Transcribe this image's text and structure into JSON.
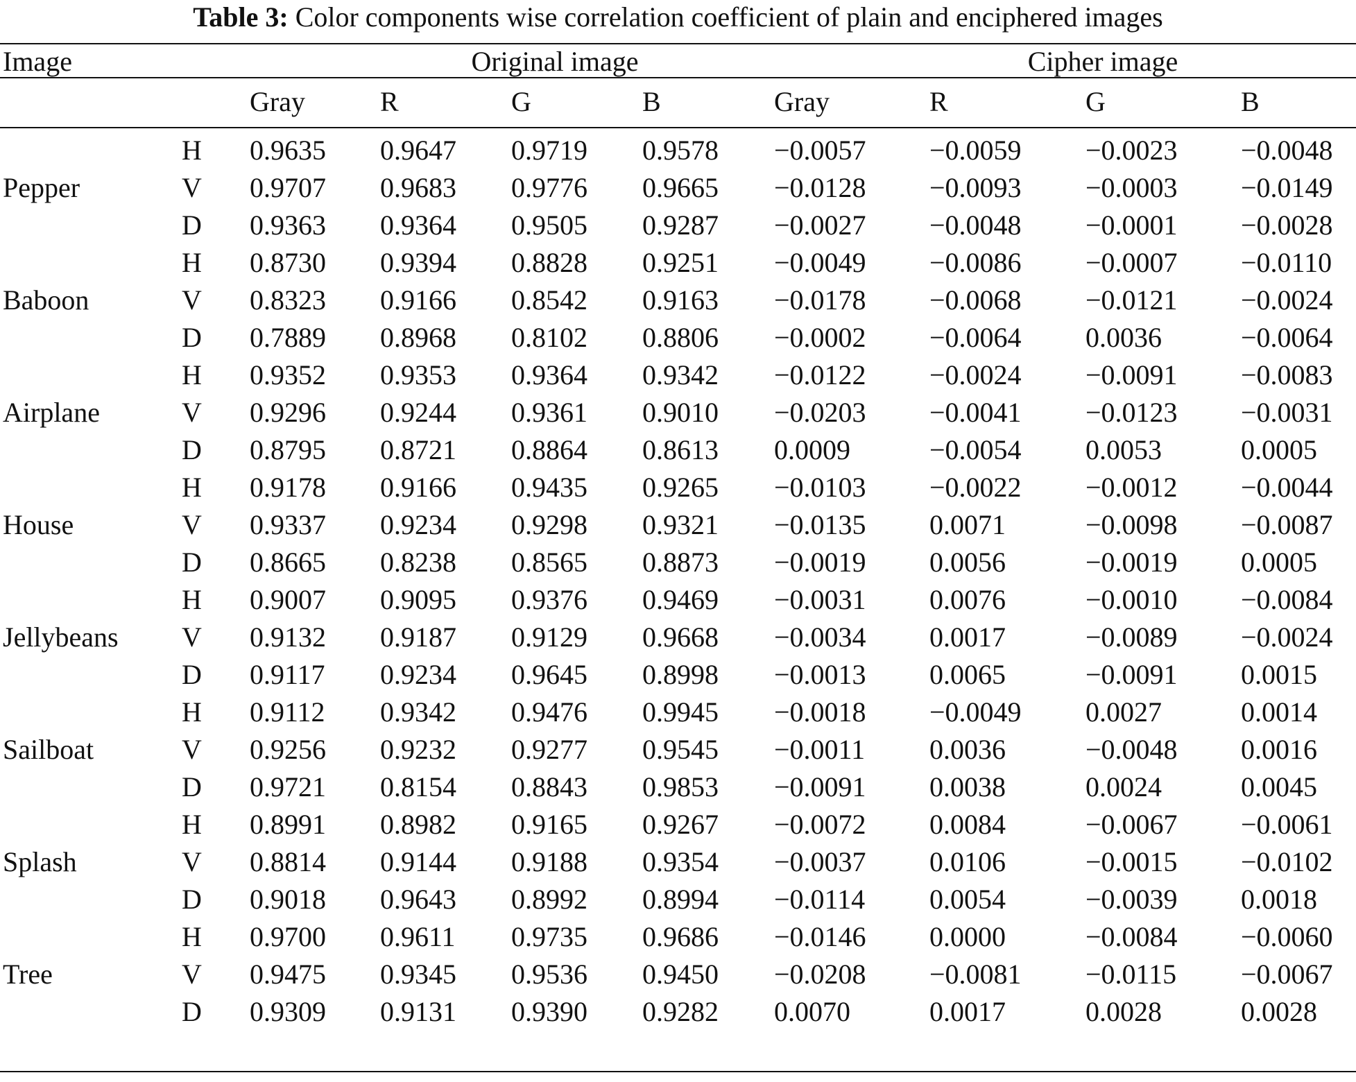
{
  "caption": {
    "label": "Table 3:",
    "text": "Color components wise correlation coefficient of plain and enciphered images"
  },
  "header": {
    "image": "Image",
    "original": "Original image",
    "cipher": "Cipher image",
    "subcols": [
      "Gray",
      "R",
      "G",
      "B",
      "Gray",
      "R",
      "G",
      "B"
    ]
  },
  "groups": [
    {
      "name": "Pepper",
      "rows": [
        {
          "dir": "H",
          "values": [
            "0.9635",
            "0.9647",
            "0.9719",
            "0.9578",
            "−0.0057",
            "−0.0059",
            "−0.0023",
            "−0.0048"
          ]
        },
        {
          "dir": "V",
          "values": [
            "0.9707",
            "0.9683",
            "0.9776",
            "0.9665",
            "−0.0128",
            "−0.0093",
            "−0.0003",
            "−0.0149"
          ]
        },
        {
          "dir": "D",
          "values": [
            "0.9363",
            "0.9364",
            "0.9505",
            "0.9287",
            "−0.0027",
            "−0.0048",
            "−0.0001",
            "−0.0028"
          ]
        }
      ]
    },
    {
      "name": "Baboon",
      "rows": [
        {
          "dir": "H",
          "values": [
            "0.8730",
            "0.9394",
            "0.8828",
            "0.9251",
            "−0.0049",
            "−0.0086",
            "−0.0007",
            "−0.0110"
          ]
        },
        {
          "dir": "V",
          "values": [
            "0.8323",
            "0.9166",
            "0.8542",
            "0.9163",
            "−0.0178",
            "−0.0068",
            "−0.0121",
            "−0.0024"
          ]
        },
        {
          "dir": "D",
          "values": [
            "0.7889",
            "0.8968",
            "0.8102",
            "0.8806",
            "−0.0002",
            "−0.0064",
            "0.0036",
            "−0.0064"
          ]
        }
      ]
    },
    {
      "name": "Airplane",
      "rows": [
        {
          "dir": "H",
          "values": [
            "0.9352",
            "0.9353",
            "0.9364",
            "0.9342",
            "−0.0122",
            "−0.0024",
            "−0.0091",
            "−0.0083"
          ]
        },
        {
          "dir": "V",
          "values": [
            "0.9296",
            "0.9244",
            "0.9361",
            "0.9010",
            "−0.0203",
            "−0.0041",
            "−0.0123",
            "−0.0031"
          ]
        },
        {
          "dir": "D",
          "values": [
            "0.8795",
            "0.8721",
            "0.8864",
            "0.8613",
            "0.0009",
            "−0.0054",
            "0.0053",
            "0.0005"
          ]
        }
      ]
    },
    {
      "name": "House",
      "rows": [
        {
          "dir": "H",
          "values": [
            "0.9178",
            "0.9166",
            "0.9435",
            "0.9265",
            "−0.0103",
            "−0.0022",
            "−0.0012",
            "−0.0044"
          ]
        },
        {
          "dir": "V",
          "values": [
            "0.9337",
            "0.9234",
            "0.9298",
            "0.9321",
            "−0.0135",
            "0.0071",
            "−0.0098",
            "−0.0087"
          ]
        },
        {
          "dir": "D",
          "values": [
            "0.8665",
            "0.8238",
            "0.8565",
            "0.8873",
            "−0.0019",
            "0.0056",
            "−0.0019",
            "0.0005"
          ]
        }
      ]
    },
    {
      "name": "Jellybeans",
      "rows": [
        {
          "dir": "H",
          "values": [
            "0.9007",
            "0.9095",
            "0.9376",
            "0.9469",
            "−0.0031",
            "0.0076",
            "−0.0010",
            "−0.0084"
          ]
        },
        {
          "dir": "V",
          "values": [
            "0.9132",
            "0.9187",
            "0.9129",
            "0.9668",
            "−0.0034",
            "0.0017",
            "−0.0089",
            "−0.0024"
          ]
        },
        {
          "dir": "D",
          "values": [
            "0.9117",
            "0.9234",
            "0.9645",
            "0.8998",
            "−0.0013",
            "0.0065",
            "−0.0091",
            "0.0015"
          ]
        }
      ]
    },
    {
      "name": "Sailboat",
      "rows": [
        {
          "dir": "H",
          "values": [
            "0.9112",
            "0.9342",
            "0.9476",
            "0.9945",
            "−0.0018",
            "−0.0049",
            "0.0027",
            "0.0014"
          ]
        },
        {
          "dir": "V",
          "values": [
            "0.9256",
            "0.9232",
            "0.9277",
            "0.9545",
            "−0.0011",
            "0.0036",
            "−0.0048",
            "0.0016"
          ]
        },
        {
          "dir": "D",
          "values": [
            "0.9721",
            "0.8154",
            "0.8843",
            "0.9853",
            "−0.0091",
            "0.0038",
            "0.0024",
            "0.0045"
          ]
        }
      ]
    },
    {
      "name": "Splash",
      "rows": [
        {
          "dir": "H",
          "values": [
            "0.8991",
            "0.8982",
            "0.9165",
            "0.9267",
            "−0.0072",
            "0.0084",
            "−0.0067",
            "−0.0061"
          ]
        },
        {
          "dir": "V",
          "values": [
            "0.8814",
            "0.9144",
            "0.9188",
            "0.9354",
            "−0.0037",
            "0.0106",
            "−0.0015",
            "−0.0102"
          ]
        },
        {
          "dir": "D",
          "values": [
            "0.9018",
            "0.9643",
            "0.8992",
            "0.8994",
            "−0.0114",
            "0.0054",
            "−0.0039",
            "0.0018"
          ]
        }
      ]
    },
    {
      "name": "Tree",
      "rows": [
        {
          "dir": "H",
          "values": [
            "0.9700",
            "0.9611",
            "0.9735",
            "0.9686",
            "−0.0146",
            "0.0000",
            "−0.0084",
            "−0.0060"
          ]
        },
        {
          "dir": "V",
          "values": [
            "0.9475",
            "0.9345",
            "0.9536",
            "0.9450",
            "−0.0208",
            "−0.0081",
            "−0.0115",
            "−0.0067"
          ]
        },
        {
          "dir": "D",
          "values": [
            "0.9309",
            "0.9131",
            "0.9390",
            "0.9282",
            "0.0070",
            "0.0017",
            "0.0028",
            "0.0028"
          ]
        }
      ]
    }
  ]
}
